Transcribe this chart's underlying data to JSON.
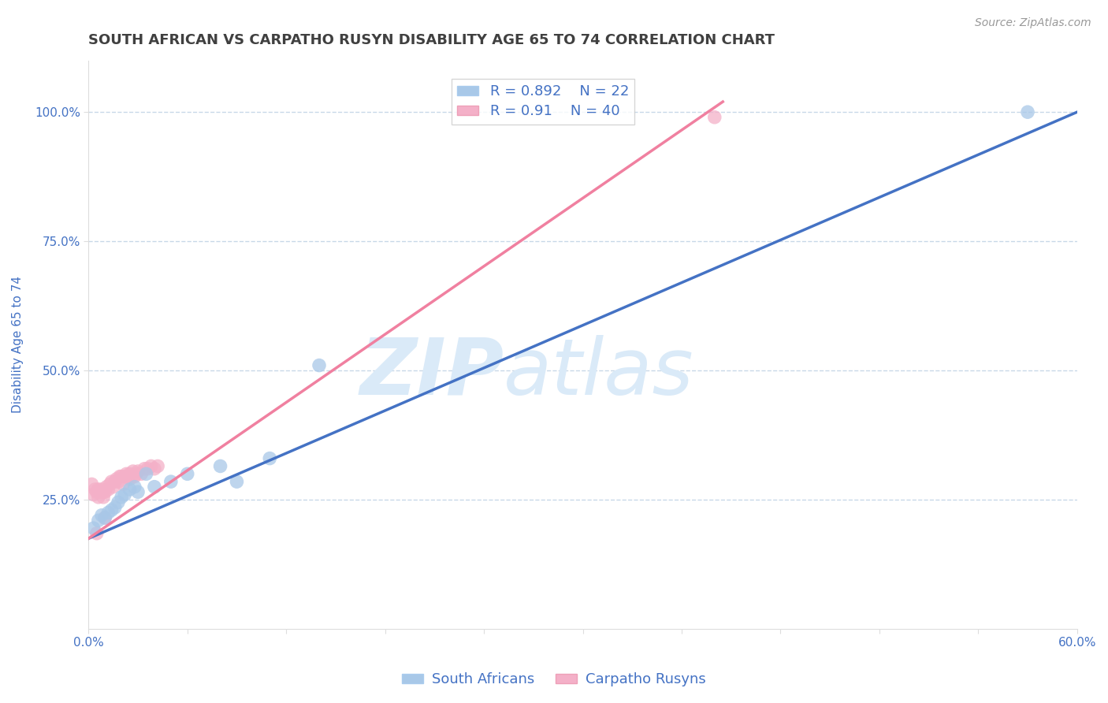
{
  "title": "SOUTH AFRICAN VS CARPATHO RUSYN DISABILITY AGE 65 TO 74 CORRELATION CHART",
  "source": "Source: ZipAtlas.com",
  "ylabel": "Disability Age 65 to 74",
  "xlim": [
    0.0,
    0.6
  ],
  "ylim": [
    0.0,
    1.1
  ],
  "yticks": [
    0.25,
    0.5,
    0.75,
    1.0
  ],
  "ytick_labels": [
    "25.0%",
    "50.0%",
    "75.0%",
    "100.0%"
  ],
  "xticks": [
    0.0,
    0.06,
    0.12,
    0.18,
    0.24,
    0.3,
    0.36,
    0.42,
    0.48,
    0.54,
    0.6
  ],
  "xtick_labels": [
    "0.0%",
    "",
    "",
    "",
    "",
    "",
    "",
    "",
    "",
    "",
    "60.0%"
  ],
  "blue_R": 0.892,
  "blue_N": 22,
  "pink_R": 0.91,
  "pink_N": 40,
  "blue_color": "#a8c8e8",
  "pink_color": "#f4b0c8",
  "blue_line_color": "#4472c4",
  "pink_line_color": "#f080a0",
  "legend_text_color": "#4472c4",
  "title_color": "#404040",
  "axis_label_color": "#4472c4",
  "watermark_color": "#daeaf8",
  "blue_line_x0": 0.0,
  "blue_line_y0": 0.175,
  "blue_line_x1": 0.6,
  "blue_line_y1": 1.0,
  "pink_line_x0": 0.0,
  "pink_line_y0": 0.175,
  "pink_line_x1": 0.385,
  "pink_line_y1": 1.02,
  "blue_x": [
    0.003,
    0.006,
    0.008,
    0.01,
    0.012,
    0.014,
    0.016,
    0.018,
    0.02,
    0.022,
    0.025,
    0.028,
    0.03,
    0.035,
    0.04,
    0.05,
    0.06,
    0.08,
    0.09,
    0.11,
    0.14,
    0.57
  ],
  "blue_y": [
    0.195,
    0.21,
    0.22,
    0.215,
    0.225,
    0.23,
    0.235,
    0.245,
    0.255,
    0.26,
    0.27,
    0.275,
    0.265,
    0.3,
    0.275,
    0.285,
    0.3,
    0.315,
    0.285,
    0.33,
    0.51,
    1.0
  ],
  "pink_x": [
    0.002,
    0.003,
    0.004,
    0.005,
    0.006,
    0.006,
    0.007,
    0.008,
    0.009,
    0.009,
    0.01,
    0.011,
    0.012,
    0.013,
    0.014,
    0.015,
    0.016,
    0.017,
    0.018,
    0.019,
    0.02,
    0.021,
    0.022,
    0.023,
    0.024,
    0.025,
    0.025,
    0.027,
    0.028,
    0.029,
    0.03,
    0.032,
    0.034,
    0.036,
    0.038,
    0.04,
    0.042,
    0.01,
    0.005,
    0.38
  ],
  "pink_y": [
    0.28,
    0.26,
    0.27,
    0.265,
    0.255,
    0.27,
    0.265,
    0.27,
    0.255,
    0.265,
    0.265,
    0.275,
    0.27,
    0.28,
    0.285,
    0.275,
    0.285,
    0.29,
    0.285,
    0.295,
    0.295,
    0.28,
    0.295,
    0.3,
    0.295,
    0.29,
    0.3,
    0.305,
    0.295,
    0.3,
    0.305,
    0.3,
    0.31,
    0.31,
    0.315,
    0.31,
    0.315,
    0.215,
    0.185,
    0.99
  ],
  "background_color": "#ffffff",
  "grid_color": "#c8d8e8",
  "title_fontsize": 13,
  "label_fontsize": 11,
  "tick_fontsize": 11,
  "legend_fontsize": 13
}
